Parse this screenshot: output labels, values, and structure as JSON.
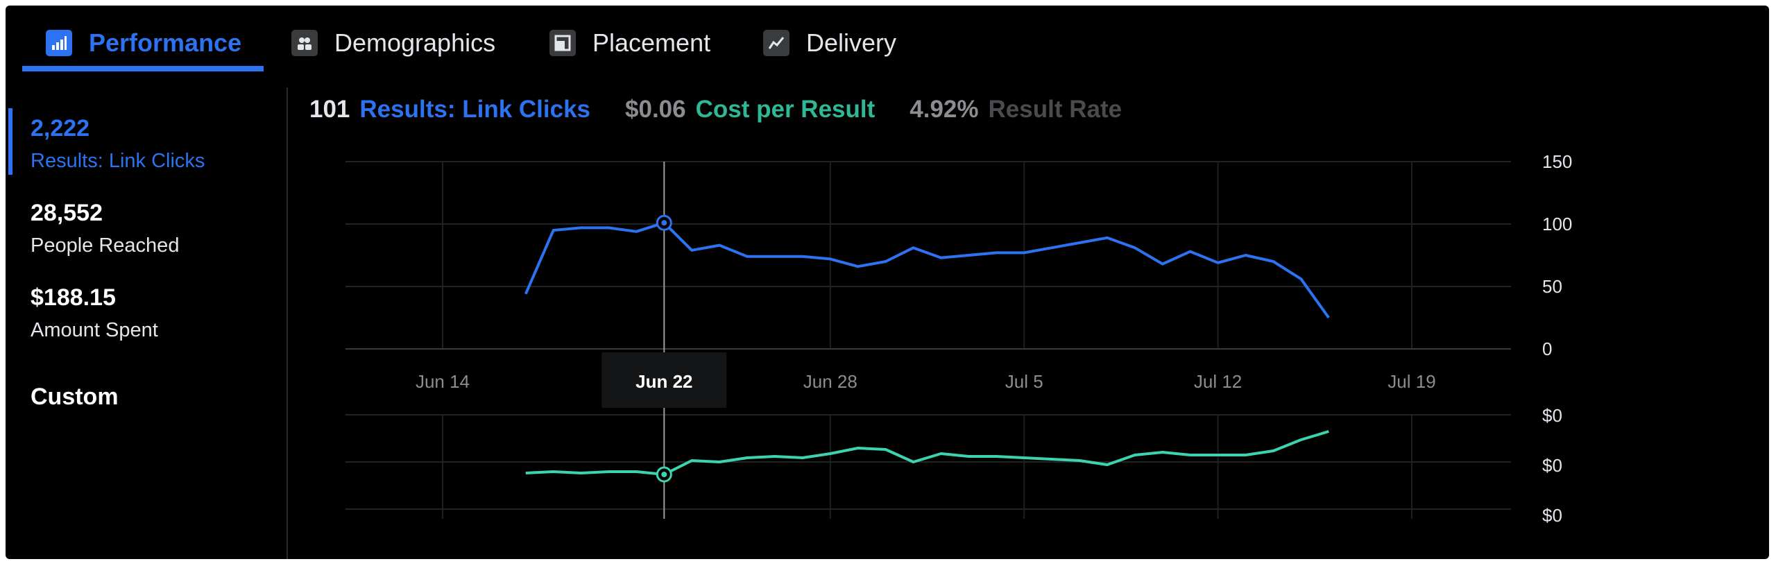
{
  "tabs": [
    {
      "label": "Performance",
      "icon": "bar-chart-icon",
      "active": true
    },
    {
      "label": "Demographics",
      "icon": "people-icon",
      "active": false
    },
    {
      "label": "Placement",
      "icon": "placement-icon",
      "active": false
    },
    {
      "label": "Delivery",
      "icon": "delivery-line-icon",
      "active": false
    }
  ],
  "metrics": [
    {
      "value": "2,222",
      "label": "Results: Link Clicks",
      "active": true
    },
    {
      "value": "28,552",
      "label": "People Reached",
      "active": false
    },
    {
      "value": "$188.15",
      "label": "Amount Spent",
      "active": false
    }
  ],
  "custom_label": "Custom",
  "summary": {
    "results_value": "101",
    "results_label": "Results: Link Clicks",
    "cost_value": "$0.06",
    "cost_label": "Cost per Result",
    "rate_value": "4.92%",
    "rate_label": "Result Rate"
  },
  "colors": {
    "accent": "#2d72f0",
    "teal": "#3dd3b0",
    "muted": "#8b8d91",
    "dim": "#4a4b4e"
  },
  "chart_data": [
    {
      "type": "line",
      "series": [
        {
          "x": [
            "Jun 17",
            "Jun 18",
            "Jun 19",
            "Jun 20",
            "Jun 21",
            "Jun 22",
            "Jun 23",
            "Jun 24",
            "Jun 25",
            "Jun 26",
            "Jun 27",
            "Jun 28",
            "Jun 29",
            "Jun 30",
            "Jul 1",
            "Jul 2",
            "Jul 3",
            "Jul 4",
            "Jul 5",
            "Jul 6",
            "Jul 7",
            "Jul 8",
            "Jul 9",
            "Jul 10",
            "Jul 11",
            "Jul 12",
            "Jul 13",
            "Jul 14",
            "Jul 15",
            "Jul 16"
          ],
          "values": [
            44,
            95,
            97,
            97,
            94,
            101,
            79,
            83,
            74,
            74,
            74,
            72,
            66,
            70,
            81,
            73,
            75,
            77,
            77,
            81,
            85,
            89,
            81,
            68,
            78,
            69,
            75,
            70,
            56,
            25
          ]
        }
      ],
      "xticks": [
        "Jun 14",
        "Jun 22",
        "Jun 28",
        "Jul 5",
        "Jul 12",
        "Jul 19"
      ],
      "highlight_tick": "Jun 22",
      "yticks": [
        "150",
        "100",
        "50",
        "0"
      ],
      "ylim": [
        0,
        150
      ]
    },
    {
      "type": "line",
      "series": [
        {
          "x": [
            "Jun 17",
            "Jun 18",
            "Jun 19",
            "Jun 20",
            "Jun 21",
            "Jun 22",
            "Jun 23",
            "Jun 24",
            "Jun 25",
            "Jun 26",
            "Jun 27",
            "Jun 28",
            "Jun 29",
            "Jun 30",
            "Jul 1",
            "Jul 2",
            "Jul 3",
            "Jul 4",
            "Jul 5",
            "Jul 6",
            "Jul 7",
            "Jul 8",
            "Jul 9",
            "Jul 10",
            "Jul 11",
            "Jul 12",
            "Jul 13",
            "Jul 14",
            "Jul 15",
            "Jul 16"
          ],
          "values": [
            0.062,
            0.061,
            0.062,
            0.061,
            0.061,
            0.063,
            0.053,
            0.054,
            0.051,
            0.05,
            0.051,
            0.048,
            0.044,
            0.045,
            0.054,
            0.048,
            0.05,
            0.05,
            0.051,
            0.052,
            0.053,
            0.056,
            0.049,
            0.047,
            0.049,
            0.049,
            0.049,
            0.046,
            0.038,
            0.032
          ]
        }
      ],
      "yticks": [
        "$0",
        "$0",
        "$0"
      ]
    }
  ]
}
